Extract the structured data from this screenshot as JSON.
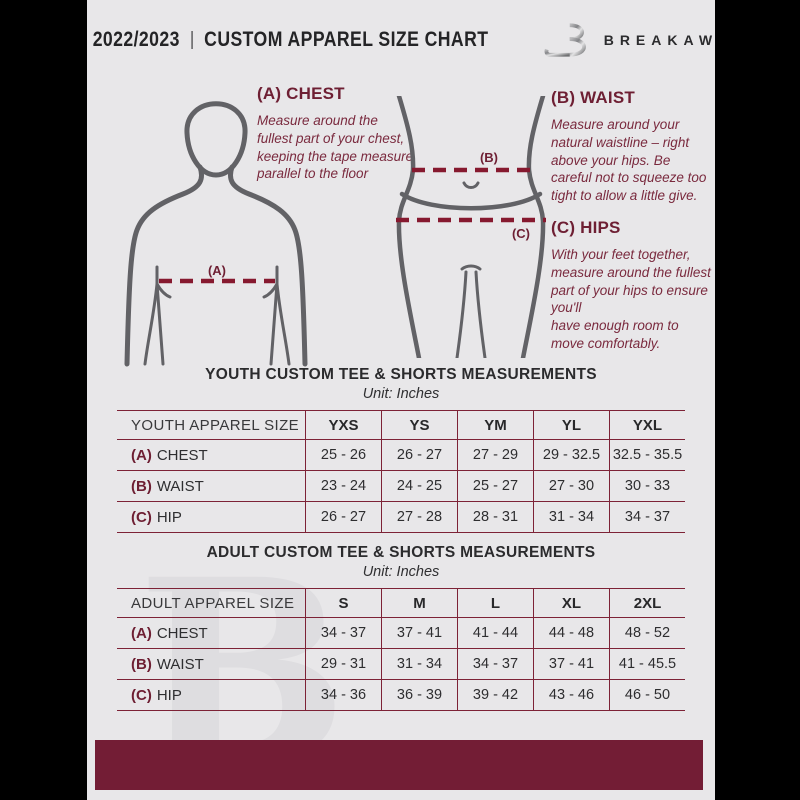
{
  "header": {
    "year": "2022/2023",
    "divider": "|",
    "title": "CUSTOM APPAREL SIZE CHART",
    "brand": "BREAKAWAY",
    "logo_icon": "stylized-B-monogram"
  },
  "guide": {
    "chest": {
      "heading": "(A) CHEST",
      "body": "Measure around the fullest part of your chest, keeping the tape measure parallel to the floor"
    },
    "waist": {
      "heading": "(B) WAIST",
      "body": "Measure around your natural waistline – right above your hips. Be careful not to squeeze too tight to allow a little give."
    },
    "hips": {
      "heading": "(C) HIPS",
      "body": "With your feet together, measure around the fullest part of your hips to ensure\nyou'll\nhave enough room to move comfortably."
    },
    "markers": {
      "chest": "(A)",
      "waist": "(B)",
      "hips": "(C)"
    }
  },
  "youth_table": {
    "title": "YOUTH CUSTOM TEE & SHORTS MEASUREMENTS",
    "unit": "Unit: Inches",
    "size_header": "YOUTH APPAREL SIZE",
    "columns": [
      "YXS",
      "YS",
      "YM",
      "YL",
      "YXL"
    ],
    "rows": [
      {
        "prefix": "(A)",
        "label": "CHEST",
        "values": [
          "25 - 26",
          "26 - 27",
          "27 - 29",
          "29 - 32.5",
          "32.5 - 35.5"
        ]
      },
      {
        "prefix": "(B)",
        "label": "WAIST",
        "values": [
          "23 - 24",
          "24 - 25",
          "25 - 27",
          "27 - 30",
          "30 - 33"
        ]
      },
      {
        "prefix": "(C)",
        "label": "HIP",
        "values": [
          "26 - 27",
          "27 - 28",
          "28 - 31",
          "31 - 34",
          "34 - 37"
        ]
      }
    ]
  },
  "adult_table": {
    "title": "ADULT CUSTOM TEE & SHORTS MEASUREMENTS",
    "unit": "Unit: Inches",
    "size_header": "ADULT APPAREL SIZE",
    "columns": [
      "S",
      "M",
      "L",
      "XL",
      "2XL"
    ],
    "rows": [
      {
        "prefix": "(A)",
        "label": "CHEST",
        "values": [
          "34 - 37",
          "37 - 41",
          "41 - 44",
          "44 - 48",
          "48 - 52"
        ]
      },
      {
        "prefix": "(B)",
        "label": "WAIST",
        "values": [
          "29 - 31",
          "31 - 34",
          "34 - 37",
          "37 - 41",
          "41 - 45.5"
        ]
      },
      {
        "prefix": "(C)",
        "label": "HIP",
        "values": [
          "34 - 36",
          "36 - 39",
          "39 - 42",
          "43 - 46",
          "46 - 50"
        ]
      }
    ]
  },
  "watermark": "B",
  "colors": {
    "maroon": "#731d35",
    "table_border": "#7d2236",
    "dash_line": "#86192f",
    "page_bg": "#e8e7e9",
    "side_bars": "#000000",
    "body_outline": "#626266",
    "text_dark": "#2e2e30"
  }
}
